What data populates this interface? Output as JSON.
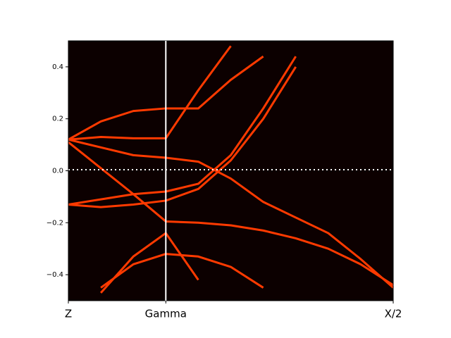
{
  "chart_data": {
    "type": "line",
    "x": [
      0,
      0.1,
      0.2,
      0.3,
      0.4,
      0.5,
      0.6,
      0.7,
      0.8,
      0.9,
      1.0
    ],
    "series": [
      {
        "color": "#ff3a00",
        "values": [
          0.12,
          0.19,
          0.23,
          0.24,
          0.24,
          0.35,
          0.44,
          null,
          null,
          null,
          null
        ]
      },
      {
        "color": "#ff3a00",
        "values": [
          0.12,
          0.13,
          0.125,
          0.125,
          0.31,
          0.48,
          null,
          null,
          null,
          null,
          null
        ]
      },
      {
        "color": "#ff3a00",
        "values": [
          0.12,
          0.09,
          0.06,
          0.05,
          0.035,
          -0.03,
          -0.12,
          -0.18,
          -0.24,
          -0.34,
          -0.45
        ]
      },
      {
        "color": "#ff3a00",
        "values": [
          0.11,
          0.01,
          -0.09,
          -0.195,
          -0.2,
          -0.21,
          -0.23,
          -0.26,
          -0.3,
          -0.36,
          -0.44
        ]
      },
      {
        "color": "#ff3a00",
        "values": [
          -0.13,
          -0.11,
          -0.09,
          -0.08,
          -0.05,
          0.06,
          0.24,
          0.44,
          null,
          null,
          null
        ]
      },
      {
        "color": "#ff3a00",
        "values": [
          -0.13,
          -0.14,
          -0.13,
          -0.115,
          -0.07,
          0.04,
          0.2,
          0.4,
          null,
          null,
          null
        ]
      },
      {
        "color": "#ff3a00",
        "values": [
          null,
          -0.45,
          -0.36,
          -0.32,
          -0.33,
          -0.37,
          -0.45,
          null,
          null,
          null,
          null
        ]
      },
      {
        "color": "#ff3a00",
        "values": [
          null,
          -0.47,
          -0.33,
          -0.24,
          -0.42,
          null,
          null,
          null,
          null,
          null,
          null
        ]
      }
    ],
    "xlim": [
      0,
      1
    ],
    "xticks": [
      {
        "value": 0,
        "label": "Z"
      },
      {
        "value": 0.3,
        "label": "Gamma"
      },
      {
        "value": 1,
        "label": "X/2"
      }
    ],
    "ylim": [
      -0.5,
      0.5
    ],
    "yticks": [
      {
        "value": -0.4,
        "label": "−0.4"
      },
      {
        "value": -0.2,
        "label": "−0.2"
      },
      {
        "value": 0,
        "label": "0.0"
      },
      0.2,
      0.4
    ],
    "background": "#0c0000"
  }
}
